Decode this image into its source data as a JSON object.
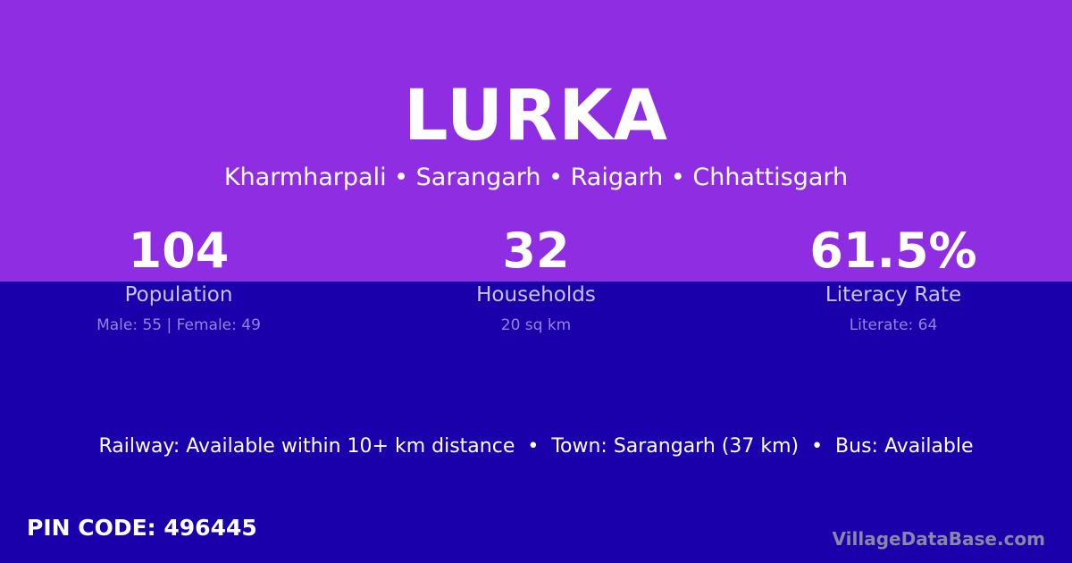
{
  "colors": {
    "top_background": "#8e2de2",
    "bottom_background": "#1a00ab"
  },
  "title": "LURKA",
  "location": "Kharmharpali • Sarangarh • Raigarh • Chhattisgarh",
  "stats": [
    {
      "value": "104",
      "label": "Population",
      "detail": "Male: 55 | Female: 49"
    },
    {
      "value": "32",
      "label": "Households",
      "detail": "20 sq km"
    },
    {
      "value": "61.5%",
      "label": "Literacy Rate",
      "detail": "Literate: 64"
    }
  ],
  "amenities": "Railway: Available within 10+ km distance  •  Town: Sarangarh (37 km)  •  Bus: Available",
  "pin_code": "PIN CODE: 496445",
  "brand": "VillageDataBase.com"
}
